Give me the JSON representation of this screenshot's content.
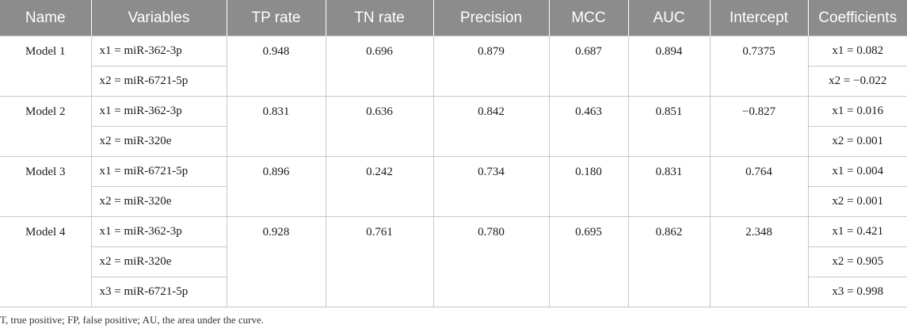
{
  "headers": [
    "Name",
    "Variables",
    "TP rate",
    "TN rate",
    "Precision",
    "MCC",
    "AUC",
    "Intercept",
    "Coefficients"
  ],
  "models": [
    {
      "name": "Model 1",
      "variables": [
        "x1 = miR-362-3p",
        "x2 = miR-6721-5p"
      ],
      "tp_rate": "0.948",
      "tn_rate": "0.696",
      "precision": "0.879",
      "mcc": "0.687",
      "auc": "0.894",
      "intercept": "0.7375",
      "coefficients": [
        "x1 = 0.082",
        "x2 = −0.022"
      ]
    },
    {
      "name": "Model 2",
      "variables": [
        "x1 = miR-362-3p",
        "x2 = miR-320e"
      ],
      "tp_rate": "0.831",
      "tn_rate": "0.636",
      "precision": "0.842",
      "mcc": "0.463",
      "auc": "0.851",
      "intercept": "−0.827",
      "coefficients": [
        "x1 = 0.016",
        "x2 = 0.001"
      ]
    },
    {
      "name": "Model 3",
      "variables": [
        "x1 = miR-6721-5p",
        "x2 = miR-320e"
      ],
      "tp_rate": "0.896",
      "tn_rate": "0.242",
      "precision": "0.734",
      "mcc": "0.180",
      "auc": "0.831",
      "intercept": "0.764",
      "coefficients": [
        "x1 = 0.004",
        "x2 = 0.001"
      ]
    },
    {
      "name": "Model 4",
      "variables": [
        "x1 = miR-362-3p",
        "x2 = miR-320e",
        "x3 = miR-6721-5p"
      ],
      "tp_rate": "0.928",
      "tn_rate": "0.761",
      "precision": "0.780",
      "mcc": "0.695",
      "auc": "0.862",
      "intercept": "2.348",
      "coefficients": [
        "x1 = 0.421",
        "x2 = 0.905",
        "x3 = 0.998"
      ]
    }
  ],
  "footnote": "T, true positive; FP, false positive; AU, the area under the curve."
}
